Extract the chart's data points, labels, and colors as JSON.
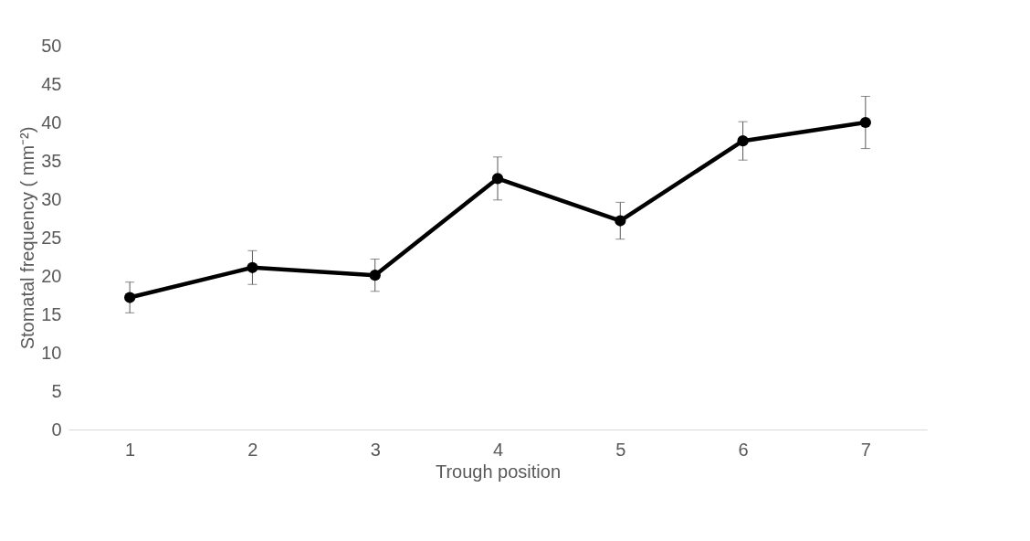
{
  "chart_data": {
    "type": "line",
    "xlabel": "Trough position",
    "ylabel": "Stomatal frequency ( mm⁻²)",
    "categories": [
      "1",
      "2",
      "3",
      "4",
      "5",
      "6",
      "7"
    ],
    "series": [
      {
        "color": "#000000",
        "values": [
          17.2,
          21.1,
          20.1,
          32.7,
          27.2,
          37.6,
          40.0
        ],
        "errors": [
          2.0,
          2.2,
          2.1,
          2.8,
          2.4,
          2.5,
          3.4
        ]
      }
    ],
    "ylim": [
      0,
      50
    ],
    "yticks": [
      0,
      5,
      10,
      15,
      20,
      25,
      30,
      35,
      40,
      45,
      50
    ],
    "grid": false,
    "marker": "circle",
    "line_style": "solid"
  }
}
